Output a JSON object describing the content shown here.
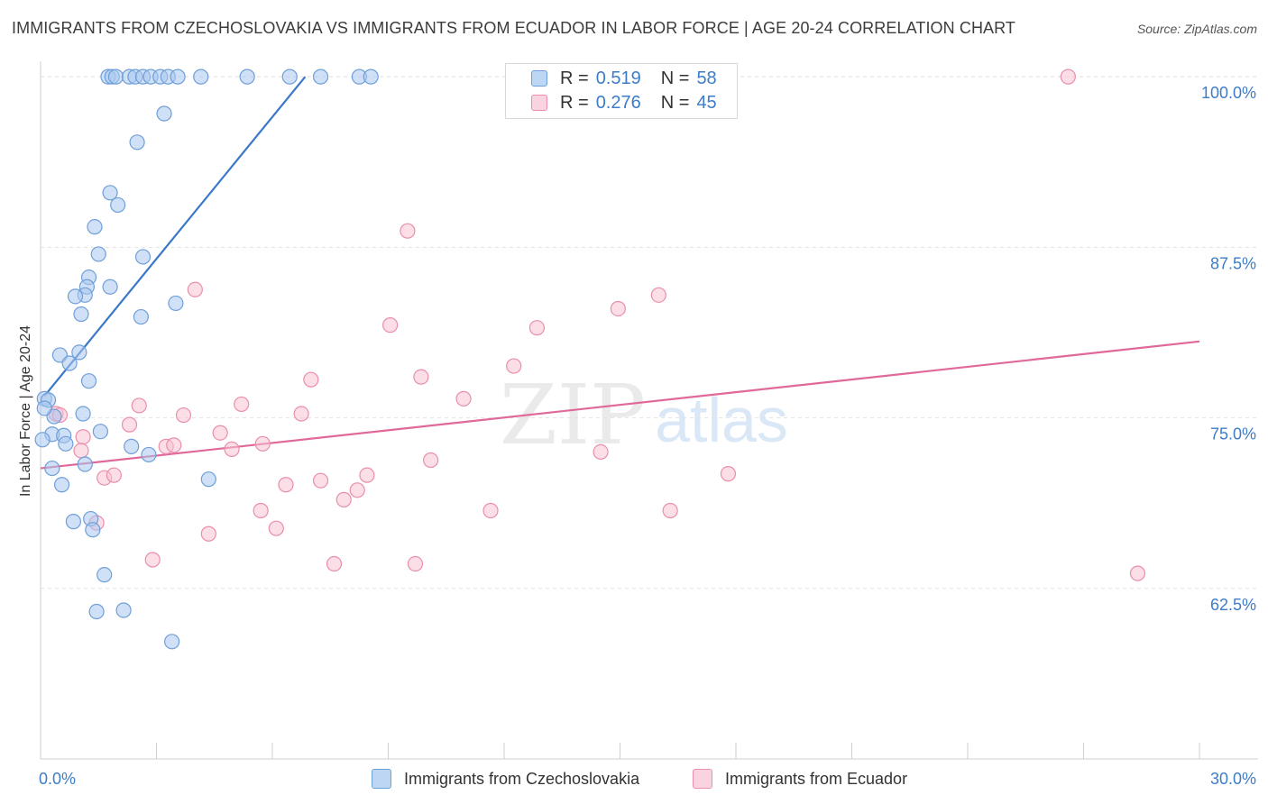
{
  "title": "IMMIGRANTS FROM CZECHOSLOVAKIA VS IMMIGRANTS FROM ECUADOR IN LABOR FORCE | AGE 20-24 CORRELATION CHART",
  "source": "Source: ZipAtlas.com",
  "watermark": {
    "zip": "ZIP",
    "atlas": "atlas"
  },
  "legend": {
    "rows": [
      {
        "r_label": "R =",
        "r_value": "0.519",
        "n_label": "N =",
        "n_value": "58"
      },
      {
        "r_label": "R =",
        "r_value": "0.276",
        "n_label": "N =",
        "n_value": "45"
      }
    ]
  },
  "bottom_legend": {
    "czech": "Immigrants from Czechoslovakia",
    "ecuador": "Immigrants from Ecuador"
  },
  "colors": {
    "czech_fill": "#a9c9f0",
    "czech_stroke": "#6f9fd8",
    "czech_line": "#3a78c8",
    "ecuador_fill": "#f7c2d2",
    "ecuador_stroke": "#ea8eab",
    "ecuador_line": "#e0689a",
    "tick_label": "#3d7cc9",
    "grid": "#e2e2e2"
  },
  "chart_data": {
    "type": "scatter",
    "title": "IMMIGRANTS FROM CZECHOSLOVAKIA VS IMMIGRANTS FROM ECUADOR IN LABOR FORCE | AGE 20-24 CORRELATION CHART",
    "xlabel": "",
    "ylabel": "In Labor Force | Age 20-24",
    "xlim": [
      0,
      30
    ],
    "ylim": [
      50,
      101
    ],
    "x_tick_labels": [
      "0.0%",
      "30.0%"
    ],
    "y_ticks": [
      62.5,
      75.0,
      87.5,
      100.0
    ],
    "y_tick_labels": [
      "62.5%",
      "75.0%",
      "87.5%",
      "100.0%"
    ],
    "series": [
      {
        "name": "Immigrants from Czechoslovakia",
        "r": 0.519,
        "n": 58,
        "trendline": {
          "x": [
            0.1,
            6.85
          ],
          "y": [
            76.6,
            100.0
          ]
        },
        "points": [
          [
            1.75,
            100
          ],
          [
            1.85,
            100
          ],
          [
            1.95,
            100
          ],
          [
            2.3,
            100
          ],
          [
            2.45,
            100
          ],
          [
            2.65,
            100
          ],
          [
            2.85,
            100
          ],
          [
            3.1,
            100
          ],
          [
            3.3,
            100
          ],
          [
            3.55,
            100
          ],
          [
            4.15,
            100
          ],
          [
            5.35,
            100
          ],
          [
            6.45,
            100
          ],
          [
            7.25,
            100
          ],
          [
            8.25,
            100
          ],
          [
            8.55,
            100
          ],
          [
            3.2,
            97.3
          ],
          [
            2.5,
            95.2
          ],
          [
            1.8,
            91.5
          ],
          [
            2.0,
            90.6
          ],
          [
            1.4,
            89.0
          ],
          [
            1.5,
            87.0
          ],
          [
            2.65,
            86.8
          ],
          [
            1.25,
            85.3
          ],
          [
            1.2,
            84.6
          ],
          [
            1.15,
            84.0
          ],
          [
            1.8,
            84.6
          ],
          [
            0.9,
            83.9
          ],
          [
            1.05,
            82.6
          ],
          [
            2.6,
            82.4
          ],
          [
            3.5,
            83.4
          ],
          [
            0.5,
            79.6
          ],
          [
            0.75,
            79.0
          ],
          [
            1.0,
            79.8
          ],
          [
            1.25,
            77.7
          ],
          [
            0.1,
            76.4
          ],
          [
            0.2,
            76.3
          ],
          [
            0.35,
            75.1
          ],
          [
            1.1,
            75.3
          ],
          [
            1.55,
            74.0
          ],
          [
            0.3,
            73.8
          ],
          [
            0.6,
            73.7
          ],
          [
            0.05,
            73.4
          ],
          [
            0.65,
            73.1
          ],
          [
            2.35,
            72.9
          ],
          [
            2.8,
            72.3
          ],
          [
            1.15,
            71.6
          ],
          [
            0.3,
            71.3
          ],
          [
            0.55,
            70.1
          ],
          [
            4.35,
            70.5
          ],
          [
            0.85,
            67.4
          ],
          [
            1.3,
            67.6
          ],
          [
            1.35,
            66.8
          ],
          [
            1.65,
            63.5
          ],
          [
            1.45,
            60.8
          ],
          [
            2.15,
            60.9
          ],
          [
            3.4,
            58.6
          ],
          [
            0.1,
            75.7
          ]
        ]
      },
      {
        "name": "Immigrants from Ecuador",
        "r": 0.276,
        "n": 45,
        "trendline": {
          "x": [
            0.0,
            30.0
          ],
          "y": [
            71.3,
            80.6
          ]
        },
        "points": [
          [
            26.6,
            100
          ],
          [
            9.5,
            88.7
          ],
          [
            4.0,
            84.4
          ],
          [
            16.0,
            84.0
          ],
          [
            14.95,
            83.0
          ],
          [
            9.05,
            81.8
          ],
          [
            12.85,
            81.6
          ],
          [
            12.25,
            78.8
          ],
          [
            9.85,
            78.0
          ],
          [
            7.0,
            77.8
          ],
          [
            10.95,
            76.4
          ],
          [
            2.55,
            75.9
          ],
          [
            5.2,
            76.0
          ],
          [
            0.4,
            75.3
          ],
          [
            0.5,
            75.2
          ],
          [
            3.7,
            75.2
          ],
          [
            6.75,
            75.3
          ],
          [
            2.3,
            74.5
          ],
          [
            4.65,
            73.9
          ],
          [
            1.1,
            73.6
          ],
          [
            3.25,
            72.9
          ],
          [
            3.45,
            73.0
          ],
          [
            5.75,
            73.1
          ],
          [
            1.05,
            72.6
          ],
          [
            4.95,
            72.7
          ],
          [
            14.5,
            72.5
          ],
          [
            10.1,
            71.9
          ],
          [
            1.65,
            70.6
          ],
          [
            1.9,
            70.8
          ],
          [
            6.35,
            70.1
          ],
          [
            7.25,
            70.4
          ],
          [
            8.45,
            70.8
          ],
          [
            17.8,
            70.9
          ],
          [
            8.2,
            69.7
          ],
          [
            7.85,
            69.0
          ],
          [
            5.7,
            68.2
          ],
          [
            11.65,
            68.2
          ],
          [
            16.3,
            68.2
          ],
          [
            1.45,
            67.3
          ],
          [
            6.1,
            66.9
          ],
          [
            4.35,
            66.5
          ],
          [
            2.9,
            64.6
          ],
          [
            7.6,
            64.3
          ],
          [
            9.7,
            64.3
          ],
          [
            28.4,
            63.6
          ]
        ]
      }
    ]
  }
}
